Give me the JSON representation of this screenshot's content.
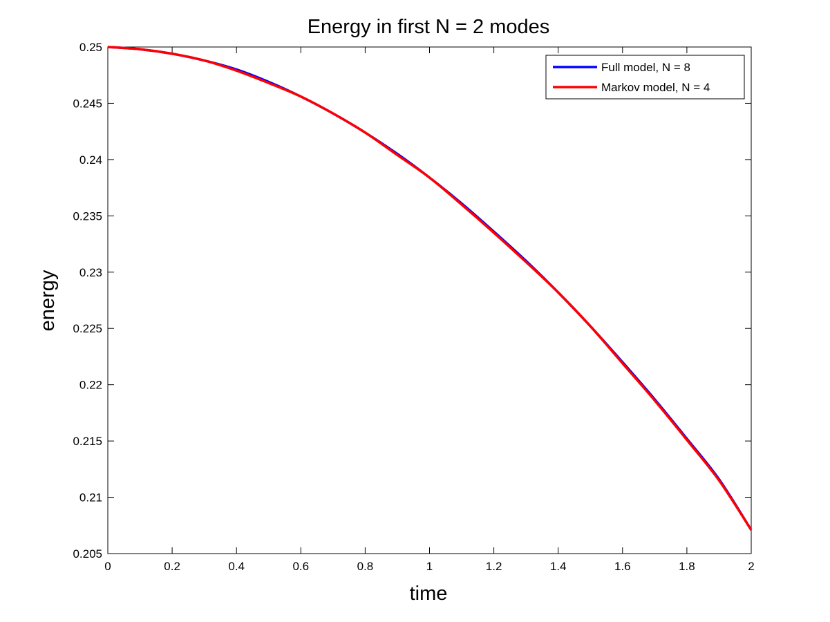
{
  "chart_data": {
    "type": "line",
    "title": "Energy in first N = 2 modes",
    "xlabel": "time",
    "ylabel": "energy",
    "xlim": [
      0,
      2
    ],
    "ylim": [
      0.205,
      0.25
    ],
    "xticks": [
      0,
      0.2,
      0.4,
      0.6,
      0.8,
      1,
      1.2,
      1.4,
      1.6,
      1.8,
      2
    ],
    "xtick_labels": [
      "0",
      "0.2",
      "0.4",
      "0.6",
      "0.8",
      "1",
      "1.2",
      "1.4",
      "1.6",
      "1.8",
      "2"
    ],
    "yticks": [
      0.205,
      0.21,
      0.215,
      0.22,
      0.225,
      0.23,
      0.235,
      0.24,
      0.245,
      0.25
    ],
    "ytick_labels": [
      "0.205",
      "0.21",
      "0.215",
      "0.22",
      "0.225",
      "0.23",
      "0.235",
      "0.24",
      "0.245",
      "0.25"
    ],
    "grid": false,
    "legend_position": "top-right",
    "series": [
      {
        "name": "Full model, N = 8",
        "color": "#0000ff",
        "x": [
          0,
          0.1,
          0.2,
          0.3,
          0.4,
          0.5,
          0.6,
          0.7,
          0.8,
          0.9,
          1.0,
          1.1,
          1.2,
          1.3,
          1.4,
          1.5,
          1.6,
          1.7,
          1.8,
          1.9,
          2.0
        ],
        "y": [
          0.25,
          0.2498,
          0.2494,
          0.2488,
          0.248,
          0.2469,
          0.2456,
          0.2441,
          0.2424,
          0.2405,
          0.2384,
          0.2361,
          0.2336,
          0.231,
          0.2282,
          0.2252,
          0.222,
          0.2187,
          0.2152,
          0.2116,
          0.2071
        ]
      },
      {
        "name": "Markov model, N = 4",
        "color": "#ff0000",
        "x": [
          0,
          0.1,
          0.2,
          0.3,
          0.4,
          0.5,
          0.6,
          0.7,
          0.8,
          0.9,
          1.0,
          1.1,
          1.2,
          1.3,
          1.4,
          1.5,
          1.6,
          1.7,
          1.8,
          1.9,
          2.0
        ],
        "y": [
          0.25,
          0.2498,
          0.2494,
          0.2488,
          0.2479,
          0.2468,
          0.2456,
          0.2441,
          0.2424,
          0.2404,
          0.2384,
          0.236,
          0.2335,
          0.2309,
          0.2282,
          0.2252,
          0.2219,
          0.2186,
          0.2151,
          0.2115,
          0.2071
        ]
      }
    ]
  }
}
